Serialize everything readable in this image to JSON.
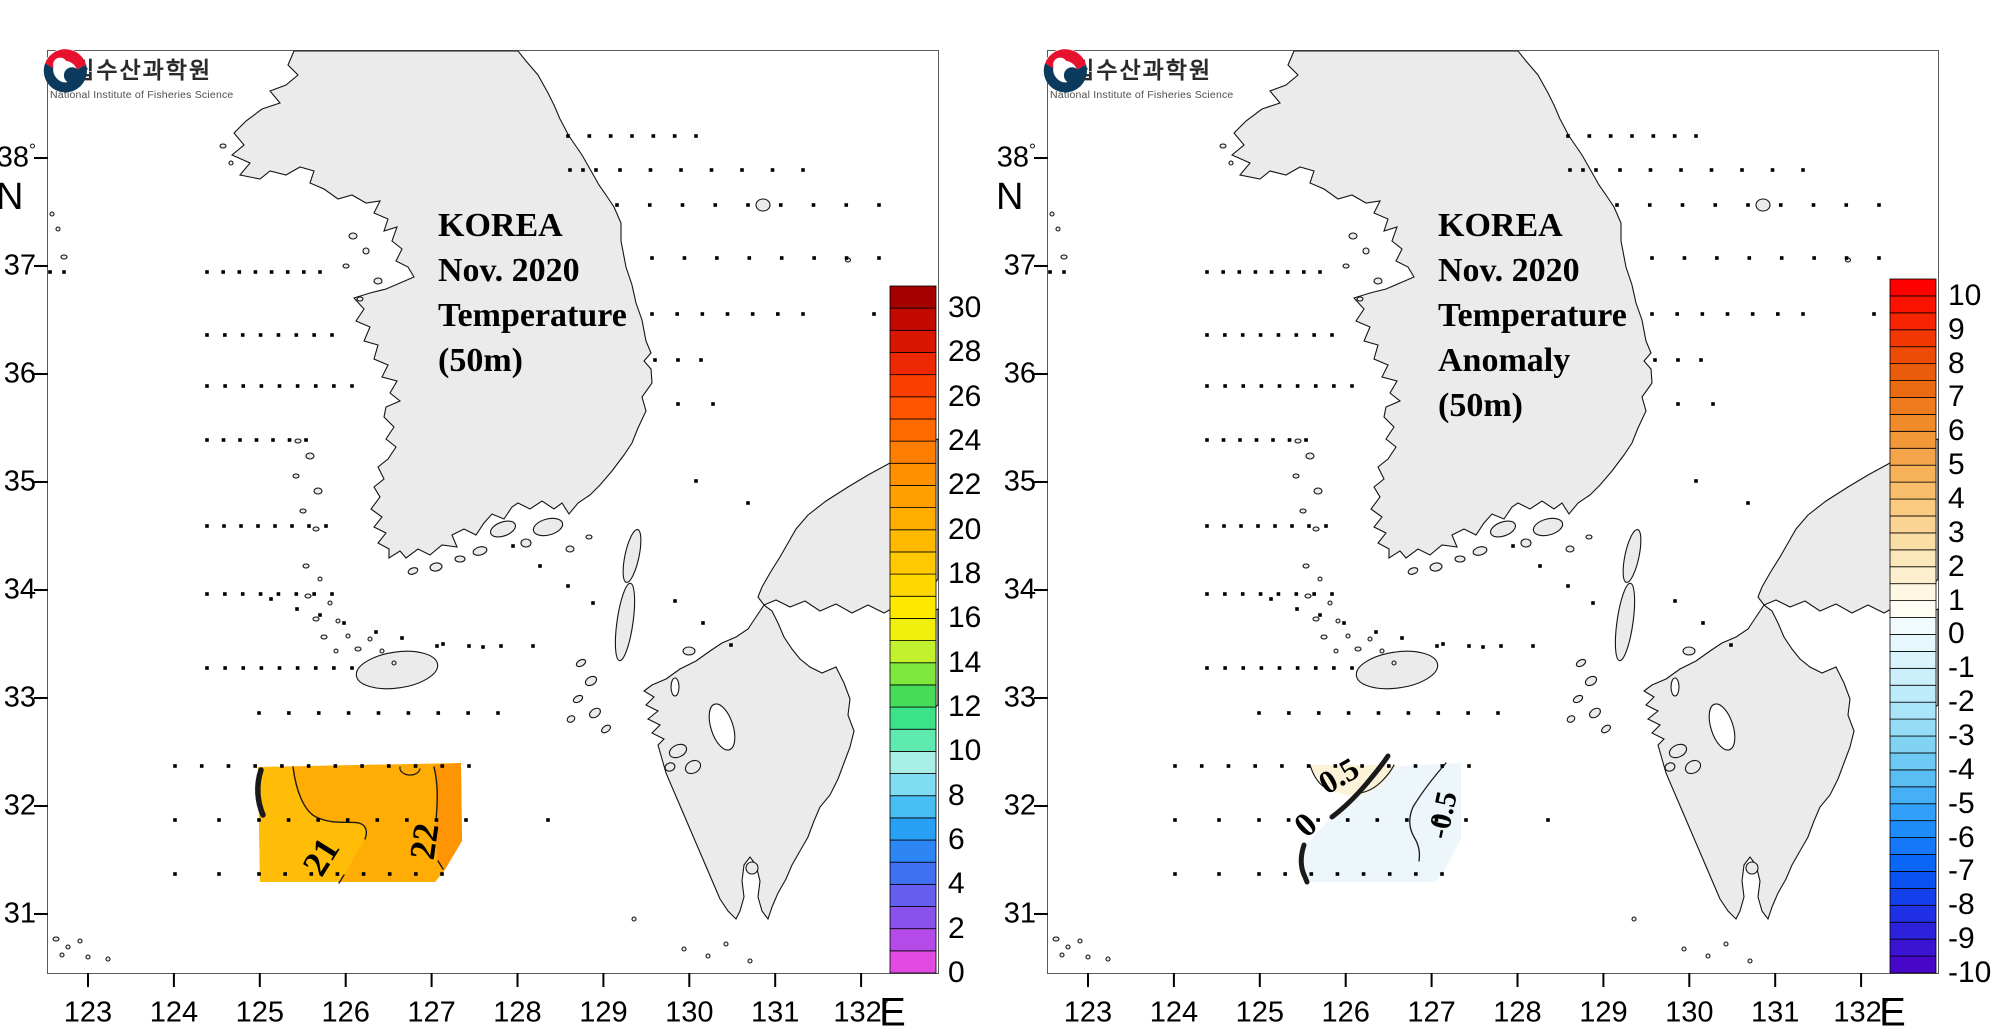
{
  "logo": {
    "korean_name": "국립수산과학원",
    "english_name": "National Institute of Fisheries Science",
    "mark_red": "#E8112D",
    "mark_navy": "#0B3A5D"
  },
  "axes_symbols": {
    "degree": "°",
    "east": "E",
    "north": "N"
  },
  "map_colors": {
    "land": "#EBEBEB",
    "coast": "#141414",
    "sea": "#FFFFFF",
    "frame": "#5A5A5A",
    "station_dot": "#000000",
    "temp_fill_west": "#FFBD08",
    "temp_fill_main": "#FFAC04",
    "temp_fill_east": "#FF9404",
    "anomaly_fill_positive": "#FBF2D8",
    "anomaly_fill_negative": "#EDF6FB",
    "contour_line": "#1A1A1A"
  },
  "chart_data": [
    {
      "type": "contour_map",
      "panel": "left",
      "title_lines": [
        "KOREA",
        "Nov. 2020",
        "Temperature",
        "(50m)"
      ],
      "variable": "Sea temperature at 50 m depth (deg C), November 2020",
      "x_axis": {
        "ticks": [
          "123",
          "124",
          "125",
          "126",
          "127",
          "128",
          "129",
          "130",
          "131",
          "132"
        ],
        "suffix_degree": "°",
        "suffix_hemisphere": "E",
        "range_lon": [
          122.5,
          132.9
        ]
      },
      "y_axis": {
        "ticks": [
          "38",
          "37",
          "36",
          "35",
          "34",
          "33",
          "32",
          "31"
        ],
        "suffix_degree": "°",
        "suffix_hemisphere": "N",
        "range_lat": [
          30.45,
          39.0
        ]
      },
      "colorbar": {
        "min": 0,
        "max": 31,
        "cell_size": 1,
        "tick_labels": [
          "30",
          "28",
          "26",
          "24",
          "22",
          "20",
          "18",
          "16",
          "14",
          "12",
          "10",
          "8",
          "6",
          "4",
          "2",
          "0"
        ],
        "colors_bottom_to_top": [
          "#E24BE2",
          "#B44BE8",
          "#8A52EC",
          "#665EF0",
          "#4070F2",
          "#2E86F5",
          "#28A0F4",
          "#49BEF2",
          "#7FDCF2",
          "#A8EFE6",
          "#5FEAB0",
          "#3CE288",
          "#46DC58",
          "#7EE83C",
          "#C2F22E",
          "#F0F00C",
          "#FFE800",
          "#FFD800",
          "#FFC800",
          "#FFBA00",
          "#FFAE00",
          "#FFA000",
          "#FF9000",
          "#FF7E00",
          "#FF6A00",
          "#FF5400",
          "#FA3E00",
          "#EE2800",
          "#DA1600",
          "#C20A00",
          "#A40000"
        ]
      },
      "contour_labels": [
        "21",
        "22"
      ],
      "contoured_area": {
        "lon_range": [
          125.0,
          127.35
        ],
        "lat_range": [
          31.45,
          32.4
        ],
        "value_range_c": [
          20.5,
          22.5
        ]
      },
      "stations": "black dot grid of oceanographic survey stations in Korean coastal waters"
    },
    {
      "type": "contour_map",
      "panel": "right",
      "title_lines": [
        "KOREA",
        "Nov. 2020",
        "Temperature",
        "Anomaly",
        "(50m)"
      ],
      "variable": "Sea temperature anomaly at 50 m depth (deg C), November 2020",
      "x_axis": {
        "ticks": [
          "123",
          "124",
          "125",
          "126",
          "127",
          "128",
          "129",
          "130",
          "131",
          "132"
        ],
        "suffix_degree": "°",
        "suffix_hemisphere": "E",
        "range_lon": [
          122.5,
          132.9
        ]
      },
      "y_axis": {
        "ticks": [
          "38",
          "37",
          "36",
          "35",
          "34",
          "33",
          "32",
          "31"
        ],
        "suffix_degree": "°",
        "suffix_hemisphere": "N",
        "range_lat": [
          30.45,
          39.0
        ]
      },
      "colorbar": {
        "min": -10,
        "max": 10.5,
        "cell_size": 0.5,
        "tick_labels": [
          "10",
          "9",
          "8",
          "7",
          "6",
          "5",
          "4",
          "3",
          "2",
          "1",
          "0",
          "-1",
          "-2",
          "-3",
          "-4",
          "-5",
          "-6",
          "-7",
          "-8",
          "-9",
          "-10"
        ],
        "colors_bottom_to_top": [
          "#4806C8",
          "#3A14D2",
          "#2C22DC",
          "#2030E4",
          "#1440EC",
          "#0A52F2",
          "#0A66F6",
          "#1478F8",
          "#1E8CFA",
          "#32A0F8",
          "#46B0F6",
          "#5ABEF4",
          "#6EC8F4",
          "#82D2F4",
          "#96DCF6",
          "#AAE4F8",
          "#BCEBFA",
          "#CCF0FB",
          "#DAF4FC",
          "#E6F8FD",
          "#F1FBFE",
          "#FFFDF4",
          "#FEF7E2",
          "#FDEFCE",
          "#FCE7BA",
          "#FBDEA6",
          "#FAD492",
          "#F9CA7F",
          "#F8BE6C",
          "#F7B25A",
          "#F5A549",
          "#F39839",
          "#F18A2B",
          "#EE7B1E",
          "#EB6B13",
          "#E95C0B",
          "#EC4A05",
          "#F13702",
          "#F62400",
          "#FB1200",
          "#FF0000"
        ]
      },
      "contour_labels": [
        "0.5",
        "0",
        "-0.5"
      ],
      "contoured_area": {
        "lon_range": [
          125.0,
          127.35
        ],
        "lat_range": [
          31.45,
          32.4
        ],
        "value_range_c": [
          -0.5,
          0.5
        ]
      },
      "stations": "black dot grid of oceanographic survey stations in Korean coastal waters"
    }
  ]
}
